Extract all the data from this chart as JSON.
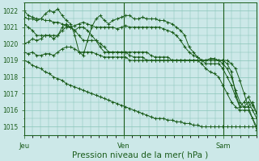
{
  "bg_color": "#cce8e8",
  "grid_color": "#88c4b8",
  "line_color": "#1a5c1a",
  "xlabel": "Pression niveau de la mer( hPa )",
  "xlabel_fontsize": 7.5,
  "ylim": [
    1014.5,
    1022.5
  ],
  "yticks": [
    1015,
    1016,
    1017,
    1018,
    1019,
    1020,
    1021,
    1022
  ],
  "day_labels": [
    "Jeu",
    "Ven",
    "Sam"
  ],
  "day_positions": [
    0,
    24,
    48
  ],
  "total_hours": 56,
  "series": [
    [
      1022.0,
      1021.7,
      1021.6,
      1021.5,
      1021.5,
      1021.4,
      1021.4,
      1021.3,
      1021.3,
      1021.2,
      1021.1,
      1021.0,
      1021.1,
      1021.2,
      1021.3,
      1021.2,
      1021.1,
      1021.0,
      1021.0,
      1021.0,
      1021.0,
      1021.0,
      1020.9,
      1021.0,
      1021.1,
      1021.0,
      1021.0,
      1021.0,
      1021.0,
      1021.0,
      1021.0,
      1021.0,
      1021.0,
      1020.9,
      1020.8,
      1020.7,
      1020.5,
      1020.2,
      1019.8,
      1019.5,
      1019.3,
      1019.2,
      1019.0,
      1019.0,
      1019.1,
      1019.1,
      1019.0,
      1019.0,
      1019.0,
      1018.8,
      1018.5,
      1017.8,
      1017.0,
      1016.2,
      1015.5,
      1014.8
    ],
    [
      1021.6,
      1021.5,
      1021.5,
      1021.4,
      1021.5,
      1021.8,
      1022.0,
      1021.9,
      1022.1,
      1021.7,
      1021.4,
      1021.2,
      1020.5,
      1019.5,
      1019.3,
      1020.2,
      1021.0,
      1021.5,
      1021.7,
      1021.4,
      1021.2,
      1021.4,
      1021.5,
      1021.6,
      1021.7,
      1021.7,
      1021.5,
      1021.5,
      1021.6,
      1021.5,
      1021.5,
      1021.5,
      1021.4,
      1021.4,
      1021.3,
      1021.2,
      1021.0,
      1020.8,
      1020.5,
      1019.8,
      1019.5,
      1019.2,
      1019.0,
      1019.0,
      1019.1,
      1019.1,
      1019.0,
      1019.0,
      1018.8,
      1018.3,
      1017.0,
      1016.2,
      1016.5,
      1016.8,
      1016.3,
      1015.8
    ],
    [
      1021.2,
      1021.0,
      1020.8,
      1020.5,
      1020.5,
      1020.5,
      1020.5,
      1020.5,
      1020.5,
      1020.8,
      1021.0,
      1021.0,
      1020.8,
      1020.5,
      1020.2,
      1020.2,
      1020.2,
      1020.2,
      1020.0,
      1019.8,
      1019.5,
      1019.5,
      1019.5,
      1019.5,
      1019.5,
      1019.5,
      1019.5,
      1019.5,
      1019.5,
      1019.5,
      1019.3,
      1019.2,
      1019.2,
      1019.2,
      1019.2,
      1019.0,
      1019.0,
      1019.0,
      1019.0,
      1019.0,
      1019.0,
      1019.0,
      1019.0,
      1019.0,
      1019.0,
      1019.0,
      1019.0,
      1018.8,
      1018.5,
      1018.0,
      1017.2,
      1016.5,
      1016.2,
      1016.2,
      1016.5,
      1015.8
    ],
    [
      1020.0,
      1020.1,
      1020.3,
      1020.2,
      1020.3,
      1020.5,
      1020.5,
      1020.3,
      1020.5,
      1021.0,
      1021.2,
      1021.0,
      1020.8,
      1021.0,
      1021.0,
      1020.8,
      1020.5,
      1020.2,
      1019.8,
      1019.5,
      1019.5,
      1019.5,
      1019.5,
      1019.5,
      1019.5,
      1019.3,
      1019.2,
      1019.2,
      1019.2,
      1019.0,
      1019.0,
      1019.0,
      1019.0,
      1019.0,
      1019.0,
      1019.0,
      1019.0,
      1019.0,
      1019.0,
      1019.0,
      1019.0,
      1019.0,
      1019.0,
      1018.8,
      1018.8,
      1018.8,
      1018.8,
      1018.5,
      1018.0,
      1017.5,
      1016.8,
      1016.2,
      1016.2,
      1016.5,
      1016.0,
      1015.5
    ],
    [
      1019.5,
      1019.4,
      1019.5,
      1019.3,
      1019.3,
      1019.4,
      1019.4,
      1019.3,
      1019.5,
      1019.7,
      1019.8,
      1019.8,
      1019.7,
      1019.5,
      1019.5,
      1019.5,
      1019.5,
      1019.4,
      1019.3,
      1019.2,
      1019.2,
      1019.2,
      1019.2,
      1019.2,
      1019.2,
      1019.0,
      1019.0,
      1019.0,
      1019.0,
      1019.0,
      1019.0,
      1019.0,
      1019.0,
      1019.0,
      1019.0,
      1019.0,
      1019.0,
      1019.0,
      1019.0,
      1019.0,
      1019.0,
      1019.0,
      1018.8,
      1018.5,
      1018.3,
      1018.2,
      1018.0,
      1017.5,
      1017.0,
      1016.5,
      1016.2,
      1016.0,
      1016.0,
      1016.0,
      1015.5,
      1015.0
    ],
    [
      1019.0,
      1018.9,
      1018.7,
      1018.6,
      1018.5,
      1018.3,
      1018.2,
      1018.0,
      1017.9,
      1017.8,
      1017.6,
      1017.5,
      1017.4,
      1017.3,
      1017.2,
      1017.1,
      1017.0,
      1016.9,
      1016.8,
      1016.7,
      1016.6,
      1016.5,
      1016.4,
      1016.3,
      1016.2,
      1016.1,
      1016.0,
      1015.9,
      1015.8,
      1015.7,
      1015.6,
      1015.5,
      1015.5,
      1015.5,
      1015.4,
      1015.4,
      1015.3,
      1015.3,
      1015.2,
      1015.2,
      1015.1,
      1015.1,
      1015.0,
      1015.0,
      1015.0,
      1015.0,
      1015.0,
      1015.0,
      1015.0,
      1015.0,
      1015.0,
      1015.0,
      1015.0,
      1015.0,
      1015.0,
      1015.0
    ]
  ]
}
